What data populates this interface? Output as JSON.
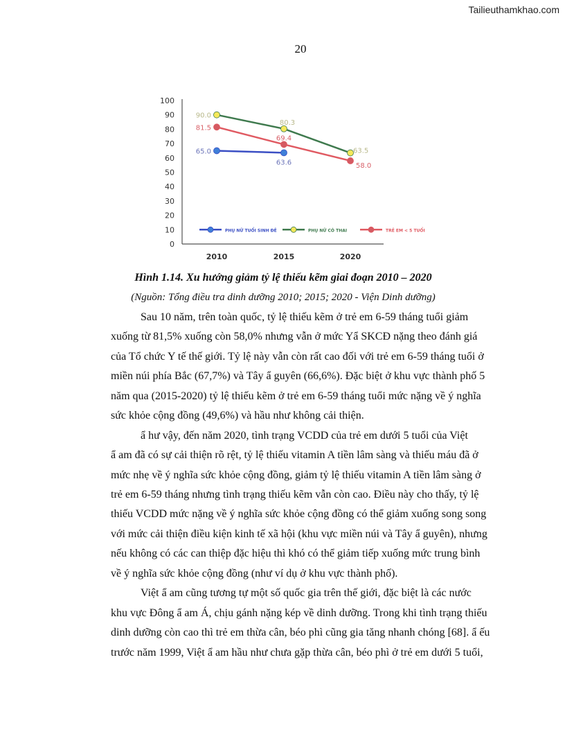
{
  "watermark": "Tailieuthamkhao.com",
  "page_number": "20",
  "chart_data": {
    "type": "line",
    "categories": [
      "2010",
      "2015",
      "2020"
    ],
    "ylim": [
      0,
      100
    ],
    "yticks": [
      "0",
      "10",
      "20",
      "30",
      "40",
      "50",
      "60",
      "70",
      "80",
      "90",
      "100"
    ],
    "grid": false,
    "legend": "inside-bottom",
    "series": [
      {
        "name": "PHỤ NỮ TUỔI SINH ĐẺ",
        "values": [
          65.0,
          63.6,
          null
        ],
        "labels": [
          "65.0",
          "63.6",
          ""
        ],
        "color": "#3b4fc4",
        "marker": "#3f7fd8",
        "label_color": "#6a73b8"
      },
      {
        "name": "PHỤ NỮ CÓ THAI",
        "values": [
          90.0,
          80.3,
          63.5
        ],
        "labels": [
          "90.0",
          "80.3",
          "63.5"
        ],
        "color": "#3f7a4e",
        "marker": "#f6e85a",
        "label_color": "#b8b88a"
      },
      {
        "name": "TRẺ EM < 5 TUỔI",
        "values": [
          81.5,
          69.4,
          58.0
        ],
        "labels": [
          "81.5",
          "69.4",
          "58.0"
        ],
        "color": "#e05a62",
        "marker": "#d55a62",
        "label_color": "#d86068"
      }
    ]
  },
  "figure": {
    "caption": "Hình 1.14. Xu hướng giảm tỷ lệ thiếu kẽm giai đoạn 2010 – 2020",
    "source": "(Nguồn: Tổng điều tra dinh dưỡng 2010; 2015; 2020  -  Viện Dinh dưỡng)"
  },
  "paragraphs": [
    {
      "lines": [
        "Sau 10 năm, trên toàn quốc, tỷ lệ thiếu kẽm ở trẻ em 6-59 tháng tuổi giảm",
        "xuống từ 81,5% xuống còn 58,0% nhưng vẫn ở mức Yẩ SKCĐ nặng theo đánh giá",
        "của Tổ chức Y tế thế giới. Tỷ lệ này vẫn còn rất cao đối với trẻ em 6-59 tháng tuổi ở",
        "miền núi phía Bắc (67,7%) và Tây ẩ guyên (66,6%). Đặc biệt ở khu vực thành phố 5",
        "năm qua (2015-2020) tỷ lệ thiếu kẽm ở trẻ em 6-59 tháng tuổi mức nặng về ý nghĩa",
        "sức khỏe cộng đồng (49,6%) và hầu như không cải thiện."
      ]
    },
    {
      "lines": [
        "ẩ hư vậy, đến năm 2020, tình trạng VCDD của trẻ em dưới 5 tuổi của Việt",
        "ẩ am đã có sự cải thiện rõ rệt, tỷ lệ thiếu vitamin A tiền lâm sàng và thiếu máu đã ở",
        "mức nhẹ về ý nghĩa sức khỏe cộng đồng, giảm tỷ lệ thiếu vitamin A tiền lâm sàng ở",
        "trẻ em 6-59 tháng nhưng tình trạng thiếu kẽm vẫn còn cao. Điều này cho thấy, tỷ lệ",
        "thiếu VCDD mức nặng về ý nghĩa sức khỏe cộng đồng có thể giảm xuống song song",
        "với mức cải thiện điều kiện kinh tế xã hội (khu vực miền núi và Tây ẩ guyên), nhưng",
        "nếu không có các can thiệp đặc hiệu thì khó có thể giảm tiếp xuống mức trung bình",
        "về ý nghĩa sức khỏe cộng đồng (như ví dụ ở khu vực thành phố)."
      ]
    },
    {
      "lines": [
        "Việt ẩ am cũng tương tự một số quốc gia trên thế giới, đặc biệt là các nước",
        "khu vực Đông ẩ am Á, chịu gánh nặng kép về dinh dưỡng. Trong khi tình trạng thiếu",
        "dinh dưỡng còn cao thì trẻ em thừa cân, béo phì cũng gia tăng nhanh chóng [68]. ẩ ếu",
        "trước năm 1999, Việt ẩ am hầu như chưa gặp thừa cân, béo phì ở trẻ em dưới 5 tuổi,"
      ]
    }
  ]
}
